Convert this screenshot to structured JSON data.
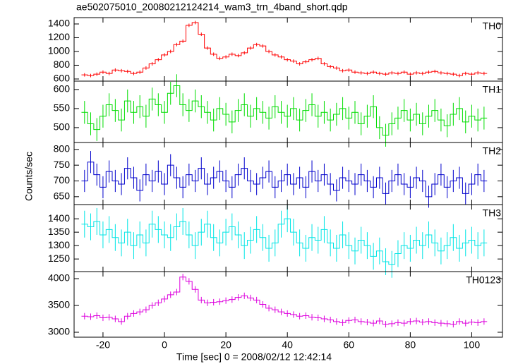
{
  "chart_data": {
    "type": "line",
    "title": "ae502075010_20080212124214_wam3_trn_4band_short.qdp",
    "xlabel": "Time [sec] 0 = 2008/02/12 12:42:14",
    "ylabel": "Counts/sec",
    "xlim": [
      -29.4,
      110
    ],
    "xticks": [
      -20,
      0,
      20,
      40,
      60,
      80,
      100
    ],
    "x": [
      -26,
      -24,
      -22,
      -20,
      -18,
      -16,
      -14,
      -12,
      -10,
      -8,
      -6,
      -4,
      -2,
      0,
      2,
      4,
      6,
      8,
      10,
      12,
      14,
      16,
      18,
      20,
      22,
      24,
      26,
      28,
      30,
      32,
      34,
      36,
      38,
      40,
      42,
      44,
      46,
      48,
      50,
      52,
      54,
      56,
      58,
      60,
      62,
      64,
      66,
      68,
      70,
      72,
      74,
      76,
      78,
      80,
      82,
      84,
      86,
      88,
      90,
      92,
      94,
      96,
      98,
      100,
      102,
      104
    ],
    "series": [
      {
        "name": "TH0",
        "color": "#ff0000",
        "error": 25,
        "ylim": [
          569,
          1492
        ],
        "yticks": [
          600,
          800,
          1000,
          1200,
          1400
        ],
        "values": [
          660,
          650,
          670,
          700,
          680,
          730,
          720,
          710,
          680,
          700,
          760,
          820,
          880,
          950,
          1000,
          1100,
          1150,
          1380,
          1420,
          1250,
          1050,
          960,
          900,
          920,
          960,
          940,
          980,
          1050,
          1100,
          1080,
          1000,
          950,
          920,
          880,
          860,
          820,
          850,
          880,
          900,
          820,
          780,
          760,
          720,
          730,
          700,
          690,
          680,
          700,
          680,
          670,
          690,
          680,
          700,
          670,
          690,
          680,
          700,
          710,
          690,
          680,
          670,
          650,
          680,
          670,
          690,
          680
        ]
      },
      {
        "name": "TH1",
        "color": "#00dd00",
        "error": 30,
        "ylim": [
          461,
          622
        ],
        "yticks": [
          500,
          550,
          600
        ],
        "values": [
          540,
          510,
          495,
          530,
          560,
          545,
          520,
          570,
          540,
          555,
          530,
          575,
          560,
          540,
          590,
          610,
          560,
          545,
          570,
          555,
          540,
          520,
          550,
          535,
          515,
          545,
          560,
          530,
          550,
          540,
          525,
          555,
          540,
          530,
          550,
          520,
          545,
          560,
          530,
          540,
          520,
          535,
          550,
          525,
          540,
          510,
          530,
          555,
          500,
          480,
          510,
          525,
          545,
          520,
          535,
          510,
          530,
          545,
          520,
          505,
          535,
          550,
          515,
          530,
          520,
          525
        ]
      },
      {
        "name": "TH2",
        "color": "#0000cc",
        "error": 35,
        "ylim": [
          625,
          822
        ],
        "yticks": [
          650,
          700,
          750,
          800
        ],
        "values": [
          700,
          760,
          720,
          680,
          730,
          700,
          690,
          740,
          710,
          670,
          720,
          700,
          730,
          690,
          750,
          710,
          680,
          720,
          700,
          740,
          690,
          710,
          730,
          700,
          680,
          720,
          740,
          700,
          690,
          710,
          730,
          680,
          700,
          720,
          690,
          710,
          680,
          730,
          700,
          720,
          690,
          670,
          710,
          700,
          690,
          720,
          700,
          680,
          710,
          660,
          700,
          720,
          690,
          680,
          710,
          700,
          650,
          690,
          720,
          680,
          700,
          710,
          660,
          690,
          720,
          700
        ]
      },
      {
        "name": "TH3",
        "color": "#00e5e5",
        "error": 50,
        "ylim": [
          1203,
          1453
        ],
        "yticks": [
          1250,
          1300,
          1350,
          1400
        ],
        "values": [
          1380,
          1370,
          1390,
          1340,
          1360,
          1330,
          1310,
          1350,
          1300,
          1340,
          1310,
          1380,
          1360,
          1340,
          1330,
          1370,
          1390,
          1340,
          1300,
          1350,
          1380,
          1330,
          1310,
          1350,
          1370,
          1340,
          1300,
          1320,
          1360,
          1330,
          1290,
          1310,
          1380,
          1400,
          1350,
          1310,
          1290,
          1330,
          1320,
          1360,
          1310,
          1290,
          1340,
          1300,
          1280,
          1320,
          1300,
          1260,
          1280,
          1240,
          1230,
          1270,
          1300,
          1290,
          1320,
          1300,
          1340,
          1310,
          1280,
          1300,
          1330,
          1290,
          1310,
          1320,
          1300,
          1310
        ]
      },
      {
        "name": "TH0123",
        "color": "#dd00dd",
        "error": 60,
        "ylim": [
          2908,
          4132
        ],
        "yticks": [
          3000,
          3500,
          4000
        ],
        "values": [
          3300,
          3290,
          3310,
          3270,
          3280,
          3250,
          3200,
          3300,
          3350,
          3380,
          3420,
          3500,
          3550,
          3620,
          3700,
          3750,
          4030,
          3950,
          3800,
          3600,
          3550,
          3560,
          3570,
          3590,
          3610,
          3650,
          3680,
          3640,
          3600,
          3520,
          3450,
          3420,
          3380,
          3350,
          3330,
          3300,
          3310,
          3280,
          3270,
          3250,
          3230,
          3200,
          3180,
          3220,
          3230,
          3200,
          3190,
          3170,
          3210,
          3150,
          3160,
          3180,
          3170,
          3200,
          3210,
          3190,
          3200,
          3180,
          3170,
          3160,
          3150,
          3200,
          3170,
          3190,
          3180,
          3200
        ]
      }
    ]
  }
}
